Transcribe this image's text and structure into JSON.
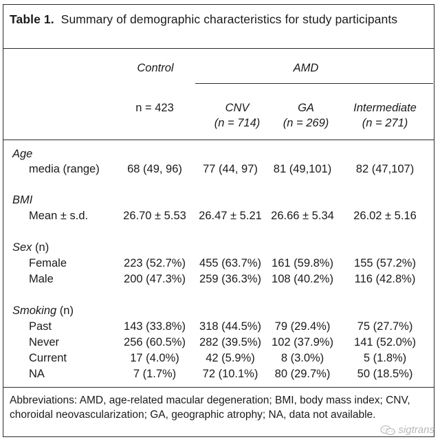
{
  "table": {
    "label": "Table 1.",
    "title_text": "Summary of demographic characteristics for study participants",
    "header": {
      "group_control": "Control",
      "group_amd": "AMD",
      "control_n": "n = 423",
      "columns": [
        {
          "name": "CNV",
          "n": "(n = 714)"
        },
        {
          "name": "GA",
          "n": "(n = 269)"
        },
        {
          "name": "Intermediate",
          "n": "(n = 271)"
        }
      ]
    },
    "sections": [
      {
        "heading": "Age",
        "heading_suffix": "",
        "rows": [
          {
            "label": "media (range)",
            "values": [
              "68 (49, 96)",
              "77 (44, 97)",
              "81 (49,101)",
              "82 (47,107)"
            ]
          }
        ]
      },
      {
        "heading": "BMI",
        "heading_suffix": "",
        "rows": [
          {
            "label": "Mean ± s.d.",
            "values": [
              "26.70 ± 5.53",
              "26.47 ± 5.21",
              "26.66 ± 5.34",
              "26.02 ± 5.16"
            ]
          }
        ]
      },
      {
        "heading": "Sex",
        "heading_suffix": " (n)",
        "rows": [
          {
            "label": "Female",
            "values": [
              "223 (52.7%)",
              "455 (63.7%)",
              "161 (59.8%)",
              "155 (57.2%)"
            ]
          },
          {
            "label": "Male",
            "values": [
              "200 (47.3%)",
              "259 (36.3%)",
              "108 (40.2%)",
              "116 (42.8%)"
            ]
          }
        ]
      },
      {
        "heading": "Smoking",
        "heading_suffix": " (n)",
        "rows": [
          {
            "label": "Past",
            "values": [
              "143 (33.8%)",
              "318 (44.5%)",
              "79 (29.4%)",
              "75 (27.7%)"
            ]
          },
          {
            "label": "Never",
            "values": [
              "256 (60.5%)",
              "282 (39.5%)",
              "102 (37.9%)",
              "141 (52.0%)"
            ]
          },
          {
            "label": "Current",
            "values": [
              "17 (4.0%)",
              "42 (5.9%)",
              "8 (3.0%)",
              "5 (1.8%)"
            ]
          },
          {
            "label": "NA",
            "values": [
              "7 (1.7%)",
              "72 (10.1%)",
              "80 (29.7%)",
              "50 (18.5%)"
            ]
          }
        ]
      }
    ],
    "footnote": "Abbreviations: AMD, age-related macular degeneration; BMI, body mass index; CNV, choroidal neovascularization; GA, geographic atrophy; NA, data not available."
  },
  "watermark": {
    "icon": "wechat-icon",
    "text": "sigtrans"
  }
}
